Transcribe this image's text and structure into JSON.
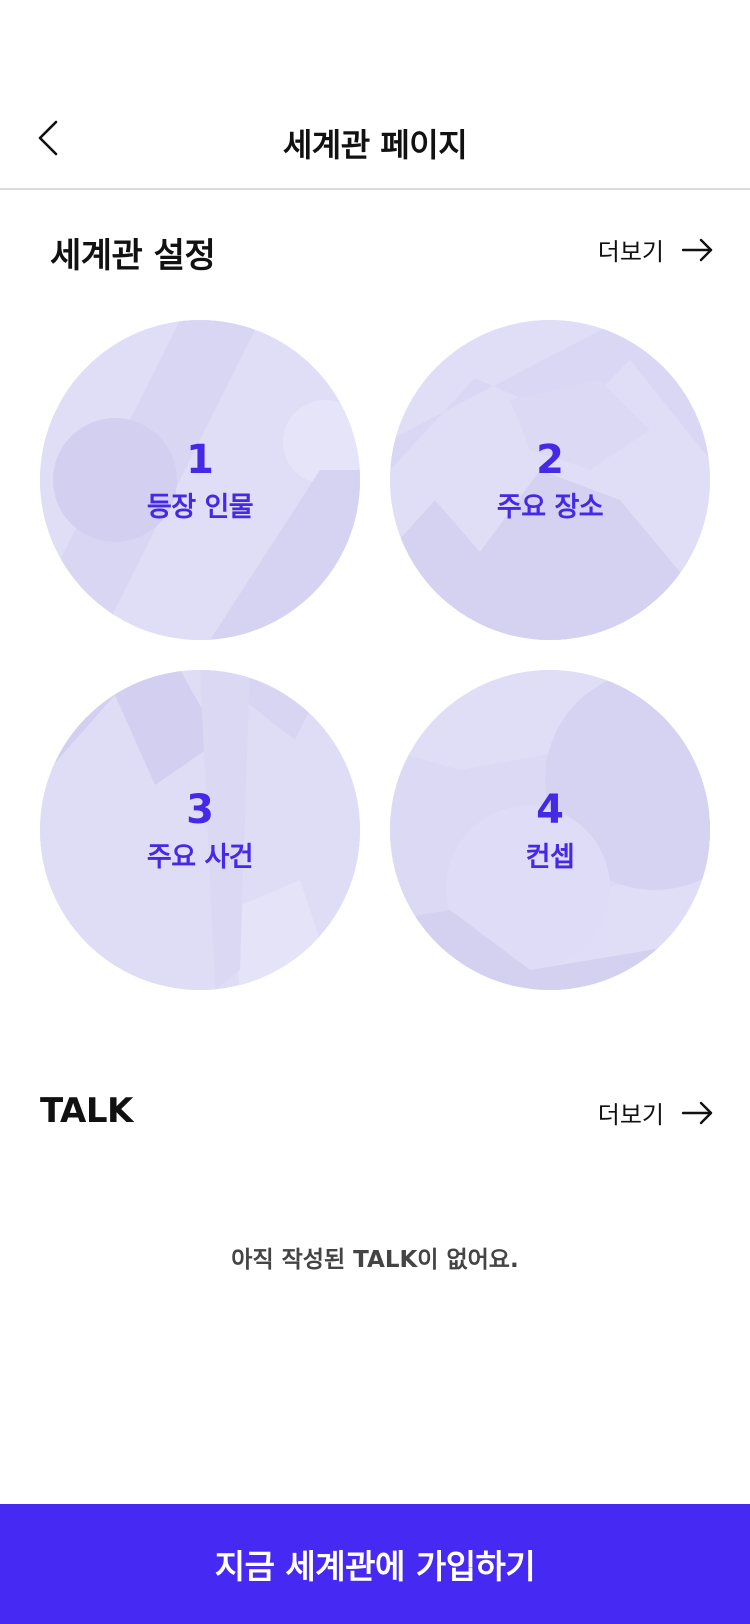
{
  "header": {
    "title": "세계관 페이지",
    "back_icon": "chevron-left-icon"
  },
  "world_settings": {
    "title": "세계관 설정",
    "more_label": "더보기",
    "more_icon": "arrow-right-icon",
    "items": [
      {
        "number": "1",
        "label": "등장 인물"
      },
      {
        "number": "2",
        "label": "주요 장소"
      },
      {
        "number": "3",
        "label": "주요 사건"
      },
      {
        "number": "4",
        "label": "컨셉"
      }
    ]
  },
  "talk": {
    "title": "TALK",
    "more_label": "더보기",
    "more_icon": "arrow-right-icon",
    "empty_message": "아직 작성된 TALK이 없어요."
  },
  "cta": {
    "label": "지금 세계관에 가입하기"
  },
  "colors": {
    "accent": "#4629f2",
    "circle_text": "#4429e6",
    "circle_bg": "#dedcf5"
  }
}
